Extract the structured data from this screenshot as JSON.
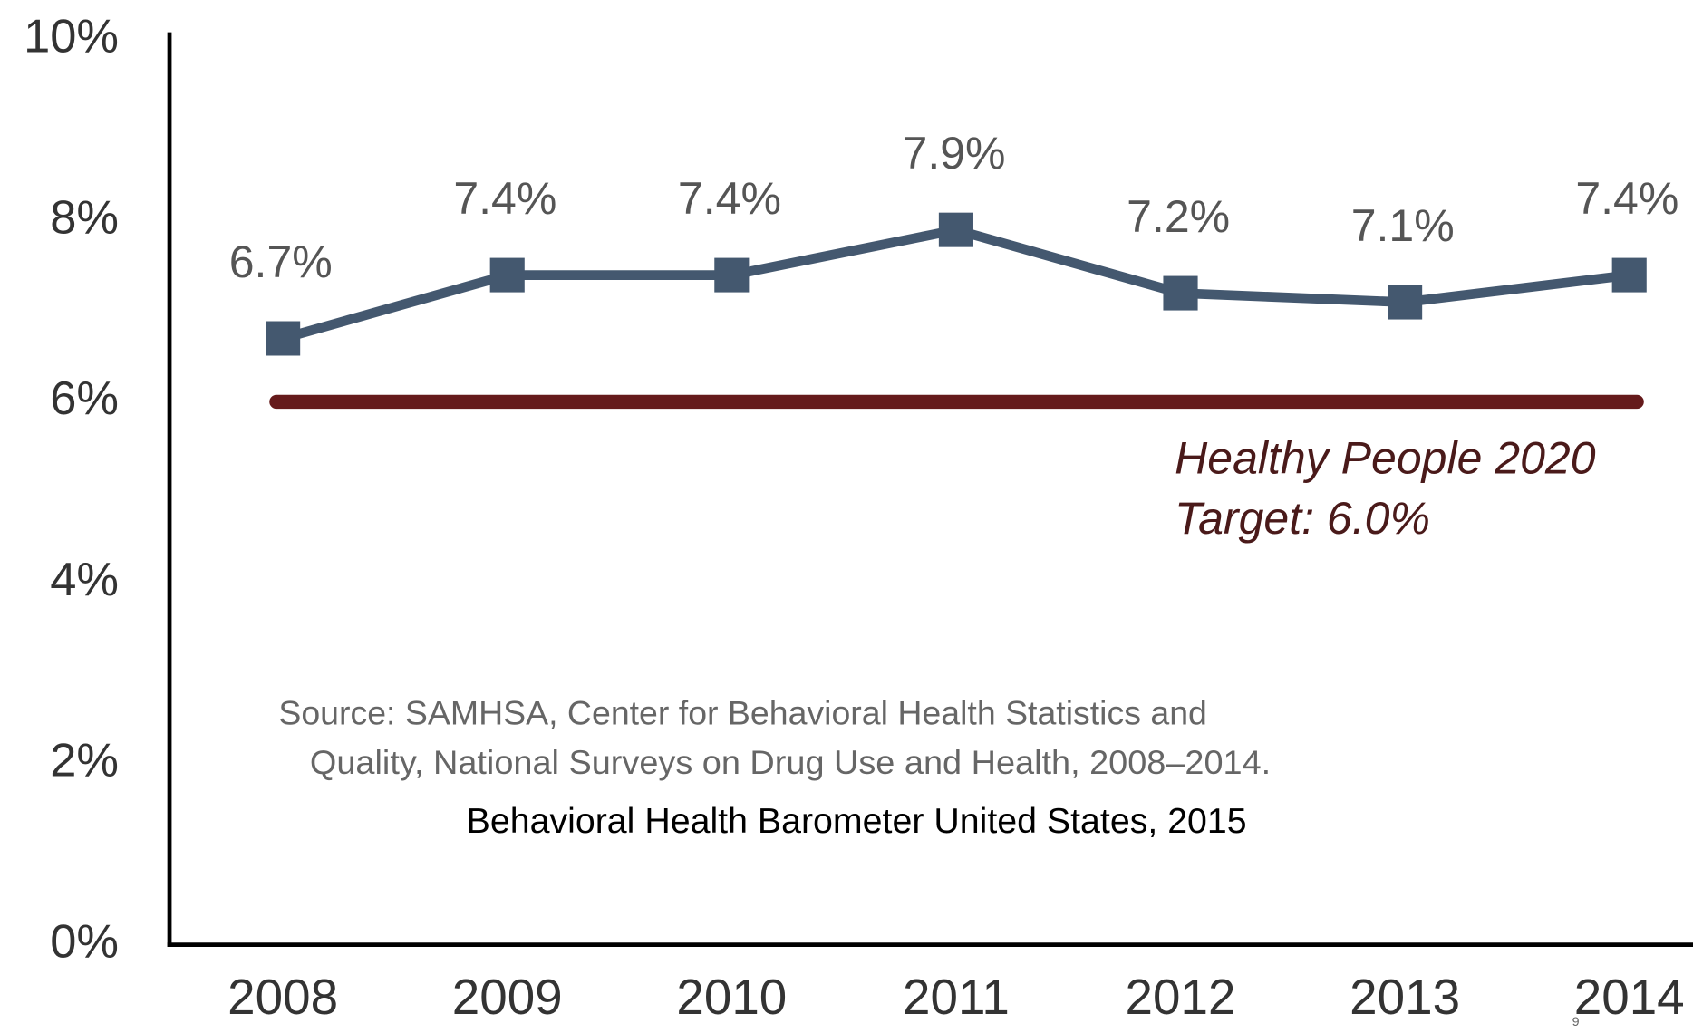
{
  "chart_data": {
    "type": "line",
    "categories": [
      "2008",
      "2009",
      "2010",
      "2011",
      "2012",
      "2013",
      "2014"
    ],
    "series": [
      {
        "name": null,
        "color": "#44586f",
        "values": [
          6.7,
          7.4,
          7.4,
          7.9,
          7.2,
          7.1,
          7.4
        ],
        "value_labels": [
          "6.7%",
          "7.4%",
          "7.4%",
          "7.9%",
          "7.2%",
          "7.1%",
          "7.4%"
        ]
      }
    ],
    "ylim": [
      0,
      10
    ],
    "yticks": [
      {
        "value": 0,
        "label": "0%"
      },
      {
        "value": 2,
        "label": "2%"
      },
      {
        "value": 4,
        "label": "4%"
      },
      {
        "value": 6,
        "label": "6%"
      },
      {
        "value": 8,
        "label": "8%"
      },
      {
        "value": 10,
        "label": "10%"
      }
    ],
    "target": {
      "value": 6,
      "color": "#651a1b",
      "label": [
        "Healthy People 2020",
        "Target: 6.0%"
      ]
    },
    "source": [
      "Source: SAMHSA, Center for Behavioral Health Statistics and",
      "Quality, National Surveys on Drug Use and Health, 2008–2014."
    ],
    "caption": "Behavioral Health Barometer United States, 2015",
    "page_number": "9"
  }
}
